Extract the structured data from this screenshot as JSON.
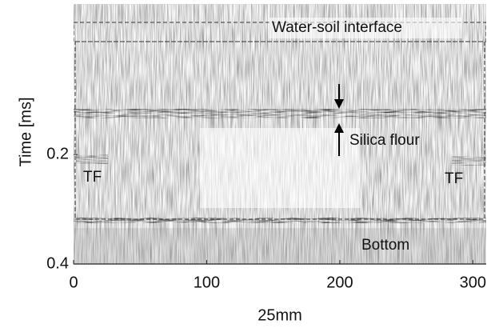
{
  "chart_data": {
    "type": "image",
    "xlabel": "25mm",
    "ylabel": "Time [ms]",
    "xlim": [
      0,
      310
    ],
    "xticks": [
      0,
      100,
      200,
      300
    ],
    "ylim": [
      -0.075,
      0.4
    ],
    "y_inverted": true,
    "yticks": [
      0.2,
      0.4
    ],
    "annotations": [
      "Water-soil interface",
      "Silica flour",
      "TF",
      "TF",
      "Bottom"
    ]
  }
}
